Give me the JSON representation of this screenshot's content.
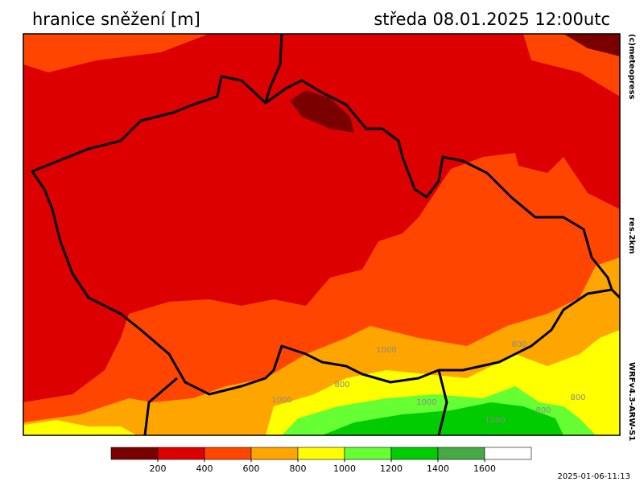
{
  "header": {
    "title": "hranice sněžení [m]",
    "valid_time": "středa 08.01.2025 12:00utc"
  },
  "credits": {
    "copyright": "(c)meteopress",
    "resolution": "res.2km",
    "model": "WRFv4.3-ARW-S1",
    "run_time": "2025-01-06-11:13"
  },
  "legend": {
    "colors": [
      "#7a0000",
      "#dd0000",
      "#ff4500",
      "#ffa500",
      "#ffff00",
      "#66ff33",
      "#00cc00",
      "#44aa44",
      "#ffffff"
    ],
    "ticks": [
      200,
      400,
      600,
      800,
      1000,
      1200,
      1400,
      1600
    ]
  },
  "contour_labels": [
    1000,
    800,
    1000,
    800,
    1200,
    1000,
    800,
    800
  ]
}
